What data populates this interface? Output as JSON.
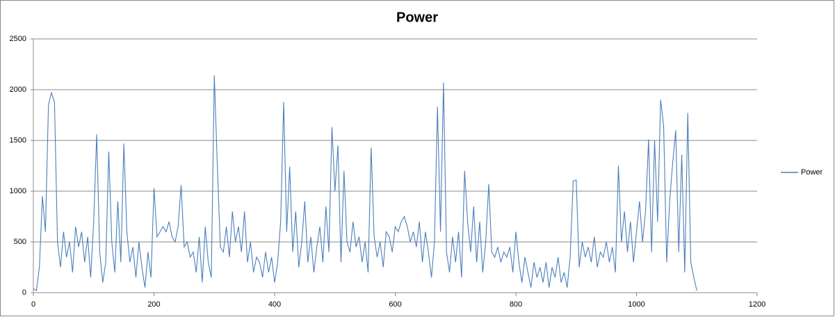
{
  "chart_data": {
    "type": "line",
    "title": "Power",
    "x": [
      0,
      5,
      10,
      15,
      20,
      25,
      30,
      35,
      40,
      45,
      50,
      55,
      60,
      65,
      70,
      75,
      80,
      85,
      90,
      95,
      100,
      105,
      110,
      115,
      120,
      125,
      130,
      135,
      140,
      145,
      150,
      155,
      160,
      165,
      170,
      175,
      180,
      185,
      190,
      195,
      200,
      205,
      210,
      215,
      220,
      225,
      230,
      235,
      240,
      245,
      250,
      255,
      260,
      265,
      270,
      275,
      280,
      285,
      290,
      295,
      300,
      305,
      310,
      315,
      320,
      325,
      330,
      335,
      340,
      345,
      350,
      355,
      360,
      365,
      370,
      375,
      380,
      385,
      390,
      395,
      400,
      405,
      410,
      415,
      420,
      425,
      430,
      435,
      440,
      445,
      450,
      455,
      460,
      465,
      470,
      475,
      480,
      485,
      490,
      495,
      500,
      505,
      510,
      515,
      520,
      525,
      530,
      535,
      540,
      545,
      550,
      555,
      560,
      565,
      570,
      575,
      580,
      585,
      590,
      595,
      600,
      605,
      610,
      615,
      620,
      625,
      630,
      635,
      640,
      645,
      650,
      655,
      660,
      665,
      670,
      675,
      680,
      685,
      690,
      695,
      700,
      705,
      710,
      715,
      720,
      725,
      730,
      735,
      740,
      745,
      750,
      755,
      760,
      765,
      770,
      775,
      780,
      785,
      790,
      795,
      800,
      805,
      810,
      815,
      820,
      825,
      830,
      835,
      840,
      845,
      850,
      855,
      860,
      865,
      870,
      875,
      880,
      885,
      890,
      895,
      900,
      905,
      910,
      915,
      920,
      925,
      930,
      935,
      940,
      945,
      950,
      955,
      960,
      965,
      970,
      975,
      980,
      985,
      990,
      995,
      1000,
      1005,
      1010,
      1015,
      1020,
      1025,
      1030,
      1035,
      1040,
      1045,
      1050,
      1055,
      1060,
      1065,
      1070,
      1075,
      1080,
      1085,
      1090,
      1095,
      1100
    ],
    "series": [
      {
        "name": "Power",
        "color": "#4a7ebb",
        "values": [
          40,
          20,
          250,
          950,
          600,
          1850,
          1970,
          1880,
          500,
          250,
          600,
          350,
          500,
          200,
          650,
          450,
          600,
          300,
          550,
          150,
          700,
          1560,
          400,
          100,
          300,
          1390,
          500,
          200,
          900,
          300,
          1470,
          600,
          300,
          450,
          150,
          500,
          250,
          50,
          400,
          150,
          1030,
          550,
          600,
          650,
          600,
          700,
          550,
          500,
          650,
          1060,
          450,
          500,
          350,
          400,
          200,
          550,
          100,
          650,
          300,
          150,
          2140,
          1250,
          450,
          400,
          650,
          350,
          800,
          500,
          650,
          400,
          800,
          300,
          500,
          200,
          350,
          300,
          150,
          400,
          200,
          350,
          100,
          300,
          700,
          1880,
          600,
          1240,
          400,
          800,
          250,
          500,
          900,
          300,
          550,
          200,
          450,
          650,
          300,
          850,
          400,
          1630,
          1000,
          1450,
          300,
          1200,
          500,
          400,
          700,
          450,
          550,
          300,
          500,
          200,
          1430,
          550,
          350,
          500,
          250,
          600,
          550,
          400,
          650,
          600,
          700,
          750,
          650,
          500,
          600,
          450,
          700,
          300,
          600,
          400,
          150,
          500,
          1830,
          600,
          2070,
          400,
          200,
          550,
          300,
          600,
          150,
          1200,
          700,
          400,
          850,
          300,
          700,
          200,
          500,
          1070,
          400,
          350,
          450,
          300,
          400,
          350,
          450,
          200,
          600,
          300,
          100,
          350,
          200,
          50,
          300,
          150,
          250,
          100,
          300,
          50,
          250,
          150,
          350,
          100,
          200,
          50,
          350,
          1100,
          1110,
          250,
          500,
          350,
          450,
          300,
          550,
          250,
          400,
          350,
          500,
          300,
          450,
          200,
          1250,
          500,
          800,
          400,
          700,
          300,
          600,
          900,
          500,
          800,
          1510,
          400,
          1500,
          700,
          1900,
          1640,
          300,
          900,
          1280,
          1600,
          400,
          1360,
          200,
          1770,
          300,
          150,
          20
        ]
      }
    ],
    "xlim": [
      0,
      1200
    ],
    "xticks": [
      0,
      200,
      400,
      600,
      800,
      1000,
      1200
    ],
    "ylim": [
      0,
      2500
    ],
    "yticks": [
      0,
      500,
      1000,
      1500,
      2000,
      2500
    ],
    "grid": true,
    "legend": "right"
  }
}
